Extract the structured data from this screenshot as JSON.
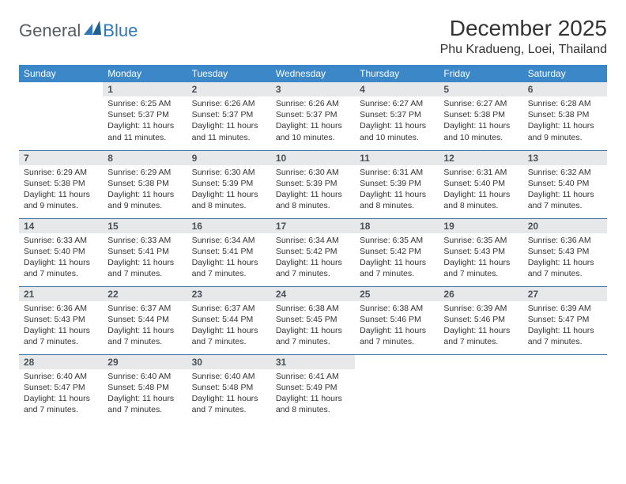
{
  "brand": {
    "part1": "General",
    "part2": "Blue"
  },
  "title": "December 2025",
  "location": "Phu Kradueng, Loei, Thailand",
  "headers": [
    "Sunday",
    "Monday",
    "Tuesday",
    "Wednesday",
    "Thursday",
    "Friday",
    "Saturday"
  ],
  "colors": {
    "header_bg": "#3b87c8",
    "header_text": "#ffffff",
    "daynum_bg": "#e7e8e9",
    "daynum_text": "#4a5056",
    "body_text": "#333333",
    "rule": "#3b6fa3",
    "logo_gray": "#555d63",
    "logo_blue": "#2f77b6"
  },
  "weeks": [
    [
      {
        "n": "",
        "lines": [
          "",
          "",
          "",
          ""
        ],
        "empty": true
      },
      {
        "n": "1",
        "lines": [
          "Sunrise: 6:25 AM",
          "Sunset: 5:37 PM",
          "Daylight: 11 hours",
          "and 11 minutes."
        ]
      },
      {
        "n": "2",
        "lines": [
          "Sunrise: 6:26 AM",
          "Sunset: 5:37 PM",
          "Daylight: 11 hours",
          "and 11 minutes."
        ]
      },
      {
        "n": "3",
        "lines": [
          "Sunrise: 6:26 AM",
          "Sunset: 5:37 PM",
          "Daylight: 11 hours",
          "and 10 minutes."
        ]
      },
      {
        "n": "4",
        "lines": [
          "Sunrise: 6:27 AM",
          "Sunset: 5:37 PM",
          "Daylight: 11 hours",
          "and 10 minutes."
        ]
      },
      {
        "n": "5",
        "lines": [
          "Sunrise: 6:27 AM",
          "Sunset: 5:38 PM",
          "Daylight: 11 hours",
          "and 10 minutes."
        ]
      },
      {
        "n": "6",
        "lines": [
          "Sunrise: 6:28 AM",
          "Sunset: 5:38 PM",
          "Daylight: 11 hours",
          "and 9 minutes."
        ]
      }
    ],
    [
      {
        "n": "7",
        "lines": [
          "Sunrise: 6:29 AM",
          "Sunset: 5:38 PM",
          "Daylight: 11 hours",
          "and 9 minutes."
        ]
      },
      {
        "n": "8",
        "lines": [
          "Sunrise: 6:29 AM",
          "Sunset: 5:38 PM",
          "Daylight: 11 hours",
          "and 9 minutes."
        ]
      },
      {
        "n": "9",
        "lines": [
          "Sunrise: 6:30 AM",
          "Sunset: 5:39 PM",
          "Daylight: 11 hours",
          "and 8 minutes."
        ]
      },
      {
        "n": "10",
        "lines": [
          "Sunrise: 6:30 AM",
          "Sunset: 5:39 PM",
          "Daylight: 11 hours",
          "and 8 minutes."
        ]
      },
      {
        "n": "11",
        "lines": [
          "Sunrise: 6:31 AM",
          "Sunset: 5:39 PM",
          "Daylight: 11 hours",
          "and 8 minutes."
        ]
      },
      {
        "n": "12",
        "lines": [
          "Sunrise: 6:31 AM",
          "Sunset: 5:40 PM",
          "Daylight: 11 hours",
          "and 8 minutes."
        ]
      },
      {
        "n": "13",
        "lines": [
          "Sunrise: 6:32 AM",
          "Sunset: 5:40 PM",
          "Daylight: 11 hours",
          "and 7 minutes."
        ]
      }
    ],
    [
      {
        "n": "14",
        "lines": [
          "Sunrise: 6:33 AM",
          "Sunset: 5:40 PM",
          "Daylight: 11 hours",
          "and 7 minutes."
        ]
      },
      {
        "n": "15",
        "lines": [
          "Sunrise: 6:33 AM",
          "Sunset: 5:41 PM",
          "Daylight: 11 hours",
          "and 7 minutes."
        ]
      },
      {
        "n": "16",
        "lines": [
          "Sunrise: 6:34 AM",
          "Sunset: 5:41 PM",
          "Daylight: 11 hours",
          "and 7 minutes."
        ]
      },
      {
        "n": "17",
        "lines": [
          "Sunrise: 6:34 AM",
          "Sunset: 5:42 PM",
          "Daylight: 11 hours",
          "and 7 minutes."
        ]
      },
      {
        "n": "18",
        "lines": [
          "Sunrise: 6:35 AM",
          "Sunset: 5:42 PM",
          "Daylight: 11 hours",
          "and 7 minutes."
        ]
      },
      {
        "n": "19",
        "lines": [
          "Sunrise: 6:35 AM",
          "Sunset: 5:43 PM",
          "Daylight: 11 hours",
          "and 7 minutes."
        ]
      },
      {
        "n": "20",
        "lines": [
          "Sunrise: 6:36 AM",
          "Sunset: 5:43 PM",
          "Daylight: 11 hours",
          "and 7 minutes."
        ]
      }
    ],
    [
      {
        "n": "21",
        "lines": [
          "Sunrise: 6:36 AM",
          "Sunset: 5:43 PM",
          "Daylight: 11 hours",
          "and 7 minutes."
        ]
      },
      {
        "n": "22",
        "lines": [
          "Sunrise: 6:37 AM",
          "Sunset: 5:44 PM",
          "Daylight: 11 hours",
          "and 7 minutes."
        ]
      },
      {
        "n": "23",
        "lines": [
          "Sunrise: 6:37 AM",
          "Sunset: 5:44 PM",
          "Daylight: 11 hours",
          "and 7 minutes."
        ]
      },
      {
        "n": "24",
        "lines": [
          "Sunrise: 6:38 AM",
          "Sunset: 5:45 PM",
          "Daylight: 11 hours",
          "and 7 minutes."
        ]
      },
      {
        "n": "25",
        "lines": [
          "Sunrise: 6:38 AM",
          "Sunset: 5:46 PM",
          "Daylight: 11 hours",
          "and 7 minutes."
        ]
      },
      {
        "n": "26",
        "lines": [
          "Sunrise: 6:39 AM",
          "Sunset: 5:46 PM",
          "Daylight: 11 hours",
          "and 7 minutes."
        ]
      },
      {
        "n": "27",
        "lines": [
          "Sunrise: 6:39 AM",
          "Sunset: 5:47 PM",
          "Daylight: 11 hours",
          "and 7 minutes."
        ]
      }
    ],
    [
      {
        "n": "28",
        "lines": [
          "Sunrise: 6:40 AM",
          "Sunset: 5:47 PM",
          "Daylight: 11 hours",
          "and 7 minutes."
        ]
      },
      {
        "n": "29",
        "lines": [
          "Sunrise: 6:40 AM",
          "Sunset: 5:48 PM",
          "Daylight: 11 hours",
          "and 7 minutes."
        ]
      },
      {
        "n": "30",
        "lines": [
          "Sunrise: 6:40 AM",
          "Sunset: 5:48 PM",
          "Daylight: 11 hours",
          "and 7 minutes."
        ]
      },
      {
        "n": "31",
        "lines": [
          "Sunrise: 6:41 AM",
          "Sunset: 5:49 PM",
          "Daylight: 11 hours",
          "and 8 minutes."
        ]
      },
      {
        "n": "",
        "lines": [
          "",
          "",
          "",
          ""
        ],
        "empty": true
      },
      {
        "n": "",
        "lines": [
          "",
          "",
          "",
          ""
        ],
        "empty": true
      },
      {
        "n": "",
        "lines": [
          "",
          "",
          "",
          ""
        ],
        "empty": true
      }
    ]
  ]
}
